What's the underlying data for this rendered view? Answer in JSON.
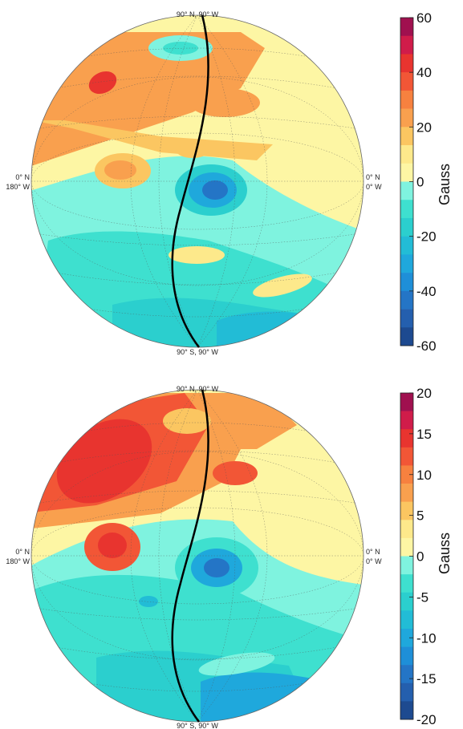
{
  "panels": [
    {
      "top_label": "90° N, 90° W",
      "bottom_label": "90° S, 90° W",
      "left_label_1": "0° N",
      "left_label_2": "180° W",
      "right_label_1": "0° N",
      "right_label_2": "0° W",
      "colorbar": {
        "title": "Gauss",
        "ticks": [
          "60",
          "40",
          "20",
          "0",
          "-20",
          "-40",
          "-60"
        ],
        "colors": [
          "#a0104f",
          "#d01c4a",
          "#e8342f",
          "#f25636",
          "#f7813f",
          "#f9a04e",
          "#fbc661",
          "#fde98b",
          "#fdf6a4",
          "#7ff3df",
          "#3ee0cf",
          "#2bcfce",
          "#22bcd6",
          "#1fa8dc",
          "#1e8fd8",
          "#2475c6",
          "#245fae",
          "#1d4a90"
        ]
      }
    },
    {
      "top_label": "90° N, 90° W",
      "bottom_label": "90° S, 90° W",
      "left_label_1": "0° N",
      "left_label_2": "180° W",
      "right_label_1": "0° N",
      "right_label_2": "0° W",
      "colorbar": {
        "title": "Gauss",
        "ticks": [
          "20",
          "15",
          "10",
          "5",
          "0",
          "-5",
          "-10",
          "-15",
          "-20"
        ],
        "colors": [
          "#a0104f",
          "#d01c4a",
          "#e8342f",
          "#f25636",
          "#f7813f",
          "#f9a04e",
          "#fbc661",
          "#fde98b",
          "#fdf6a4",
          "#7ff3df",
          "#3ee0cf",
          "#2bcfce",
          "#22bcd6",
          "#1fa8dc",
          "#1e8fd8",
          "#2475c6",
          "#245fae",
          "#1d4a90"
        ]
      }
    }
  ]
}
